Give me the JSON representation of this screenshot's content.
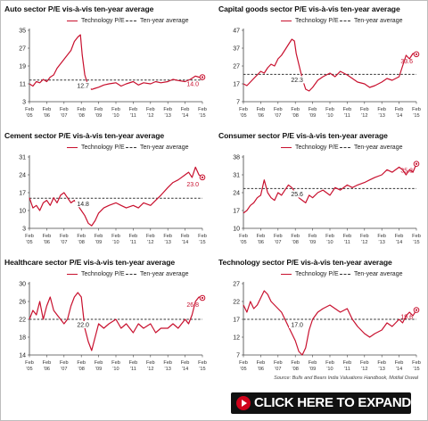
{
  "source": "Source: Bulls and Bears India Valuations Handbook, Motilal Oswal",
  "expand_button": {
    "label": "CLICK HERE TO EXPAND",
    "icon": "play-icon",
    "accent": "#d0021b"
  },
  "colors": {
    "series": "#c8102e",
    "average": "#333333"
  },
  "chart_data": [
    {
      "type": "line",
      "title": "Auto sector P/E vis-à-vis ten-year average",
      "legend": [
        "Technology P/E",
        "Ten-year average"
      ],
      "x_ticks": [
        [
          "Feb",
          "'05"
        ],
        [
          "Feb",
          "'06"
        ],
        [
          "Feb",
          "'07"
        ],
        [
          "Feb",
          "'08"
        ],
        [
          "Feb",
          "'09"
        ],
        [
          "Feb",
          "'10"
        ],
        [
          "Feb",
          "'11"
        ],
        [
          "Feb",
          "'12"
        ],
        [
          "Feb",
          "'13"
        ],
        [
          "Feb",
          "'14"
        ],
        [
          "Feb",
          "'15"
        ]
      ],
      "y_ticks": [
        3,
        11,
        19,
        27,
        35
      ],
      "ylim": [
        3,
        35
      ],
      "average": 12.7,
      "average_label": "12.7",
      "last_value": 14.0,
      "last_label": "14.0",
      "x": [
        0,
        0.2,
        0.4,
        0.6,
        0.8,
        1,
        1.2,
        1.4,
        1.6,
        1.8,
        2,
        2.2,
        2.4,
        2.6,
        2.8,
        2.95,
        3.05,
        3.2,
        3.4,
        3.6,
        3.8,
        4,
        4.3,
        4.6,
        5,
        5.3,
        5.6,
        6,
        6.3,
        6.6,
        7,
        7.3,
        7.6,
        8,
        8.3,
        8.6,
        9,
        9.3,
        9.6,
        9.8,
        10
      ],
      "values": [
        11,
        10,
        12,
        11.5,
        13,
        12,
        14,
        15,
        18,
        20,
        22,
        24,
        26,
        30,
        32,
        33,
        24,
        15,
        10,
        8.5,
        9,
        9.5,
        10.5,
        11,
        11.5,
        10,
        11,
        12,
        10.5,
        11.5,
        11,
        12,
        11.5,
        12,
        13,
        12.5,
        12,
        13,
        14.5,
        14,
        14
      ]
    },
    {
      "type": "line",
      "title": "Capital goods sector P/E vis-à-vis ten-year average",
      "legend": [
        "Technology P/E",
        "Ten-year average"
      ],
      "x_ticks": [
        [
          "Feb",
          "'05"
        ],
        [
          "Feb",
          "'06"
        ],
        [
          "Feb",
          "'07"
        ],
        [
          "Feb",
          "'08"
        ],
        [
          "Feb",
          "'09"
        ],
        [
          "Feb",
          "'10"
        ],
        [
          "Feb",
          "'11"
        ],
        [
          "Feb",
          "'12"
        ],
        [
          "Feb",
          "'13"
        ],
        [
          "Feb",
          "'14"
        ],
        [
          "Feb",
          "'15"
        ]
      ],
      "y_ticks": [
        7,
        17,
        27,
        37,
        47
      ],
      "ylim": [
        7,
        47
      ],
      "average": 22.3,
      "average_label": "22.3",
      "last_value": 33.6,
      "last_label": "33.6",
      "x": [
        0,
        0.2,
        0.4,
        0.6,
        0.8,
        1,
        1.2,
        1.4,
        1.6,
        1.8,
        2,
        2.2,
        2.4,
        2.6,
        2.8,
        2.95,
        3.05,
        3.2,
        3.4,
        3.6,
        3.8,
        4,
        4.3,
        4.6,
        5,
        5.3,
        5.6,
        6,
        6.3,
        6.6,
        7,
        7.3,
        7.6,
        8,
        8.3,
        8.6,
        9,
        9.2,
        9.4,
        9.6,
        9.8,
        10
      ],
      "values": [
        17,
        16,
        18,
        20,
        22,
        24,
        23,
        26,
        28,
        27,
        31,
        33,
        36,
        39,
        42,
        41,
        34,
        28,
        20,
        14,
        13,
        15,
        19,
        21,
        23,
        21,
        24,
        22,
        20,
        18,
        17,
        15,
        16,
        18,
        20,
        19,
        21,
        27,
        33,
        31,
        34,
        33.6
      ]
    },
    {
      "type": "line",
      "title": "Cement sector P/E vis-à-vis ten-year average",
      "legend": [
        "Technology P/E",
        "Ten-year average"
      ],
      "x_ticks": [
        [
          "Feb",
          "'05"
        ],
        [
          "Feb",
          "'06"
        ],
        [
          "Feb",
          "'07"
        ],
        [
          "Feb",
          "'08"
        ],
        [
          "Feb",
          "'09"
        ],
        [
          "Feb",
          "'10"
        ],
        [
          "Feb",
          "'11"
        ],
        [
          "Feb",
          "'12"
        ],
        [
          "Feb",
          "'13"
        ],
        [
          "Feb",
          "'14"
        ],
        [
          "Feb",
          "'15"
        ]
      ],
      "y_ticks": [
        3,
        10,
        17,
        24,
        31
      ],
      "ylim": [
        3,
        31
      ],
      "average": 14.8,
      "average_label": "14.8",
      "last_value": 23.0,
      "last_label": "23.0",
      "x": [
        0,
        0.2,
        0.4,
        0.6,
        0.8,
        1,
        1.2,
        1.4,
        1.6,
        1.8,
        2,
        2.2,
        2.4,
        2.6,
        2.8,
        3,
        3.2,
        3.4,
        3.6,
        3.8,
        4,
        4.3,
        4.6,
        5,
        5.3,
        5.6,
        6,
        6.3,
        6.6,
        7,
        7.3,
        7.6,
        8,
        8.3,
        8.6,
        9,
        9.2,
        9.4,
        9.6,
        9.8,
        10
      ],
      "values": [
        15,
        11,
        12,
        10,
        13,
        14,
        12,
        15,
        13,
        16,
        17,
        15,
        13,
        14,
        12,
        10,
        8,
        5,
        4,
        6,
        9,
        11,
        12,
        13,
        12,
        11,
        12,
        11,
        13,
        12,
        14,
        16,
        19,
        21,
        22,
        24,
        25,
        23,
        27,
        24,
        23
      ]
    },
    {
      "type": "line",
      "title": "Consumer sector P/E vis-à-vis ten-year average",
      "legend": [
        "Technology P/E",
        "Ten-year average"
      ],
      "x_ticks": [
        [
          "Feb",
          "'05"
        ],
        [
          "Feb",
          "'06"
        ],
        [
          "Feb",
          "'07"
        ],
        [
          "Feb",
          "'08"
        ],
        [
          "Feb",
          "'09"
        ],
        [
          "Feb",
          "'10"
        ],
        [
          "Feb",
          "'11"
        ],
        [
          "Feb",
          "'12"
        ],
        [
          "Feb",
          "'13"
        ],
        [
          "Feb",
          "'14"
        ],
        [
          "Feb",
          "'15"
        ]
      ],
      "y_ticks": [
        10,
        17,
        24,
        31,
        38
      ],
      "ylim": [
        10,
        38
      ],
      "average": 25.6,
      "average_label": "25.6",
      "last_value": 35.3,
      "last_label": "35.3",
      "x": [
        0,
        0.2,
        0.4,
        0.6,
        0.8,
        1,
        1.2,
        1.4,
        1.6,
        1.8,
        2,
        2.2,
        2.4,
        2.6,
        2.8,
        3,
        3.2,
        3.4,
        3.6,
        3.8,
        4,
        4.3,
        4.6,
        5,
        5.3,
        5.6,
        6,
        6.3,
        6.6,
        7,
        7.3,
        7.6,
        8,
        8.3,
        8.6,
        9,
        9.2,
        9.4,
        9.6,
        9.8,
        10
      ],
      "values": [
        16,
        17,
        19,
        20,
        22,
        23,
        29,
        24,
        22,
        21,
        24,
        23,
        25,
        27,
        26,
        24,
        22,
        21,
        20,
        23,
        22,
        24,
        25,
        23,
        26,
        25,
        27,
        26,
        27,
        28,
        29,
        30,
        31,
        33,
        32,
        34,
        33,
        31,
        33,
        32,
        35.3
      ]
    },
    {
      "type": "line",
      "title": "Healthcare sector P/E vis-à-vis ten-year average",
      "legend": [
        "Technology P/E",
        "Ten-year average"
      ],
      "x_ticks": [
        [
          "Feb",
          "'05"
        ],
        [
          "Feb",
          "'06"
        ],
        [
          "Feb",
          "'07"
        ],
        [
          "Feb",
          "'08"
        ],
        [
          "Feb",
          "'09"
        ],
        [
          "Feb",
          "'10"
        ],
        [
          "Feb",
          "'11"
        ],
        [
          "Feb",
          "'12"
        ],
        [
          "Feb",
          "'13"
        ],
        [
          "Feb",
          "'14"
        ],
        [
          "Feb",
          "'15"
        ]
      ],
      "y_ticks": [
        14,
        18,
        22,
        26,
        30
      ],
      "ylim": [
        14,
        30
      ],
      "average": 22.0,
      "average_label": "22.0",
      "last_value": 26.8,
      "last_label": "26.8",
      "x": [
        0,
        0.2,
        0.4,
        0.6,
        0.8,
        1,
        1.2,
        1.4,
        1.6,
        1.8,
        2,
        2.2,
        2.4,
        2.6,
        2.8,
        3,
        3.2,
        3.4,
        3.6,
        3.8,
        4,
        4.3,
        4.6,
        5,
        5.3,
        5.6,
        6,
        6.3,
        6.6,
        7,
        7.3,
        7.6,
        8,
        8.3,
        8.6,
        9,
        9.2,
        9.4,
        9.6,
        9.8,
        10
      ],
      "values": [
        22,
        24,
        23,
        26,
        22,
        25,
        27,
        24,
        23,
        22,
        21,
        22,
        25,
        27,
        28,
        27,
        20,
        17,
        15,
        18,
        21,
        20,
        21,
        22,
        20,
        21,
        19,
        21,
        20,
        21,
        19,
        20,
        20,
        21,
        20,
        22,
        21,
        23,
        26,
        27,
        26.8
      ]
    },
    {
      "type": "line",
      "title": "Technology sector P/E vis-à-vis ten-year average",
      "legend": [
        "Technology P/E",
        "Ten-year average"
      ],
      "x_ticks": [
        [
          "Feb",
          "'05"
        ],
        [
          "Feb",
          "'06"
        ],
        [
          "Feb",
          "'07"
        ],
        [
          "Feb",
          "'08"
        ],
        [
          "Feb",
          "'09"
        ],
        [
          "Feb",
          "'10"
        ],
        [
          "Feb",
          "'11"
        ],
        [
          "Feb",
          "'12"
        ],
        [
          "Feb",
          "'13"
        ],
        [
          "Feb",
          "'14"
        ],
        [
          "Feb",
          "'15"
        ]
      ],
      "y_ticks": [
        7,
        12,
        17,
        22,
        27
      ],
      "ylim": [
        7,
        27
      ],
      "average": 17.0,
      "average_label": "17.0",
      "last_value": 19.6,
      "last_label": "19.6",
      "x": [
        0,
        0.2,
        0.4,
        0.6,
        0.8,
        1,
        1.2,
        1.4,
        1.6,
        1.8,
        2,
        2.2,
        2.4,
        2.6,
        2.8,
        3,
        3.2,
        3.4,
        3.6,
        3.8,
        4,
        4.3,
        4.6,
        5,
        5.3,
        5.6,
        6,
        6.3,
        6.6,
        7,
        7.3,
        7.6,
        8,
        8.3,
        8.6,
        9,
        9.2,
        9.4,
        9.6,
        9.8,
        10
      ],
      "values": [
        21,
        19,
        22,
        20,
        21,
        23,
        25,
        24,
        22,
        21,
        20,
        19,
        17,
        15,
        13,
        11,
        8,
        7,
        9,
        14,
        17,
        19,
        20,
        21,
        20,
        19,
        20,
        17,
        15,
        13,
        12,
        13,
        14,
        16,
        15,
        17,
        16,
        18,
        19,
        18,
        19.6
      ]
    }
  ]
}
